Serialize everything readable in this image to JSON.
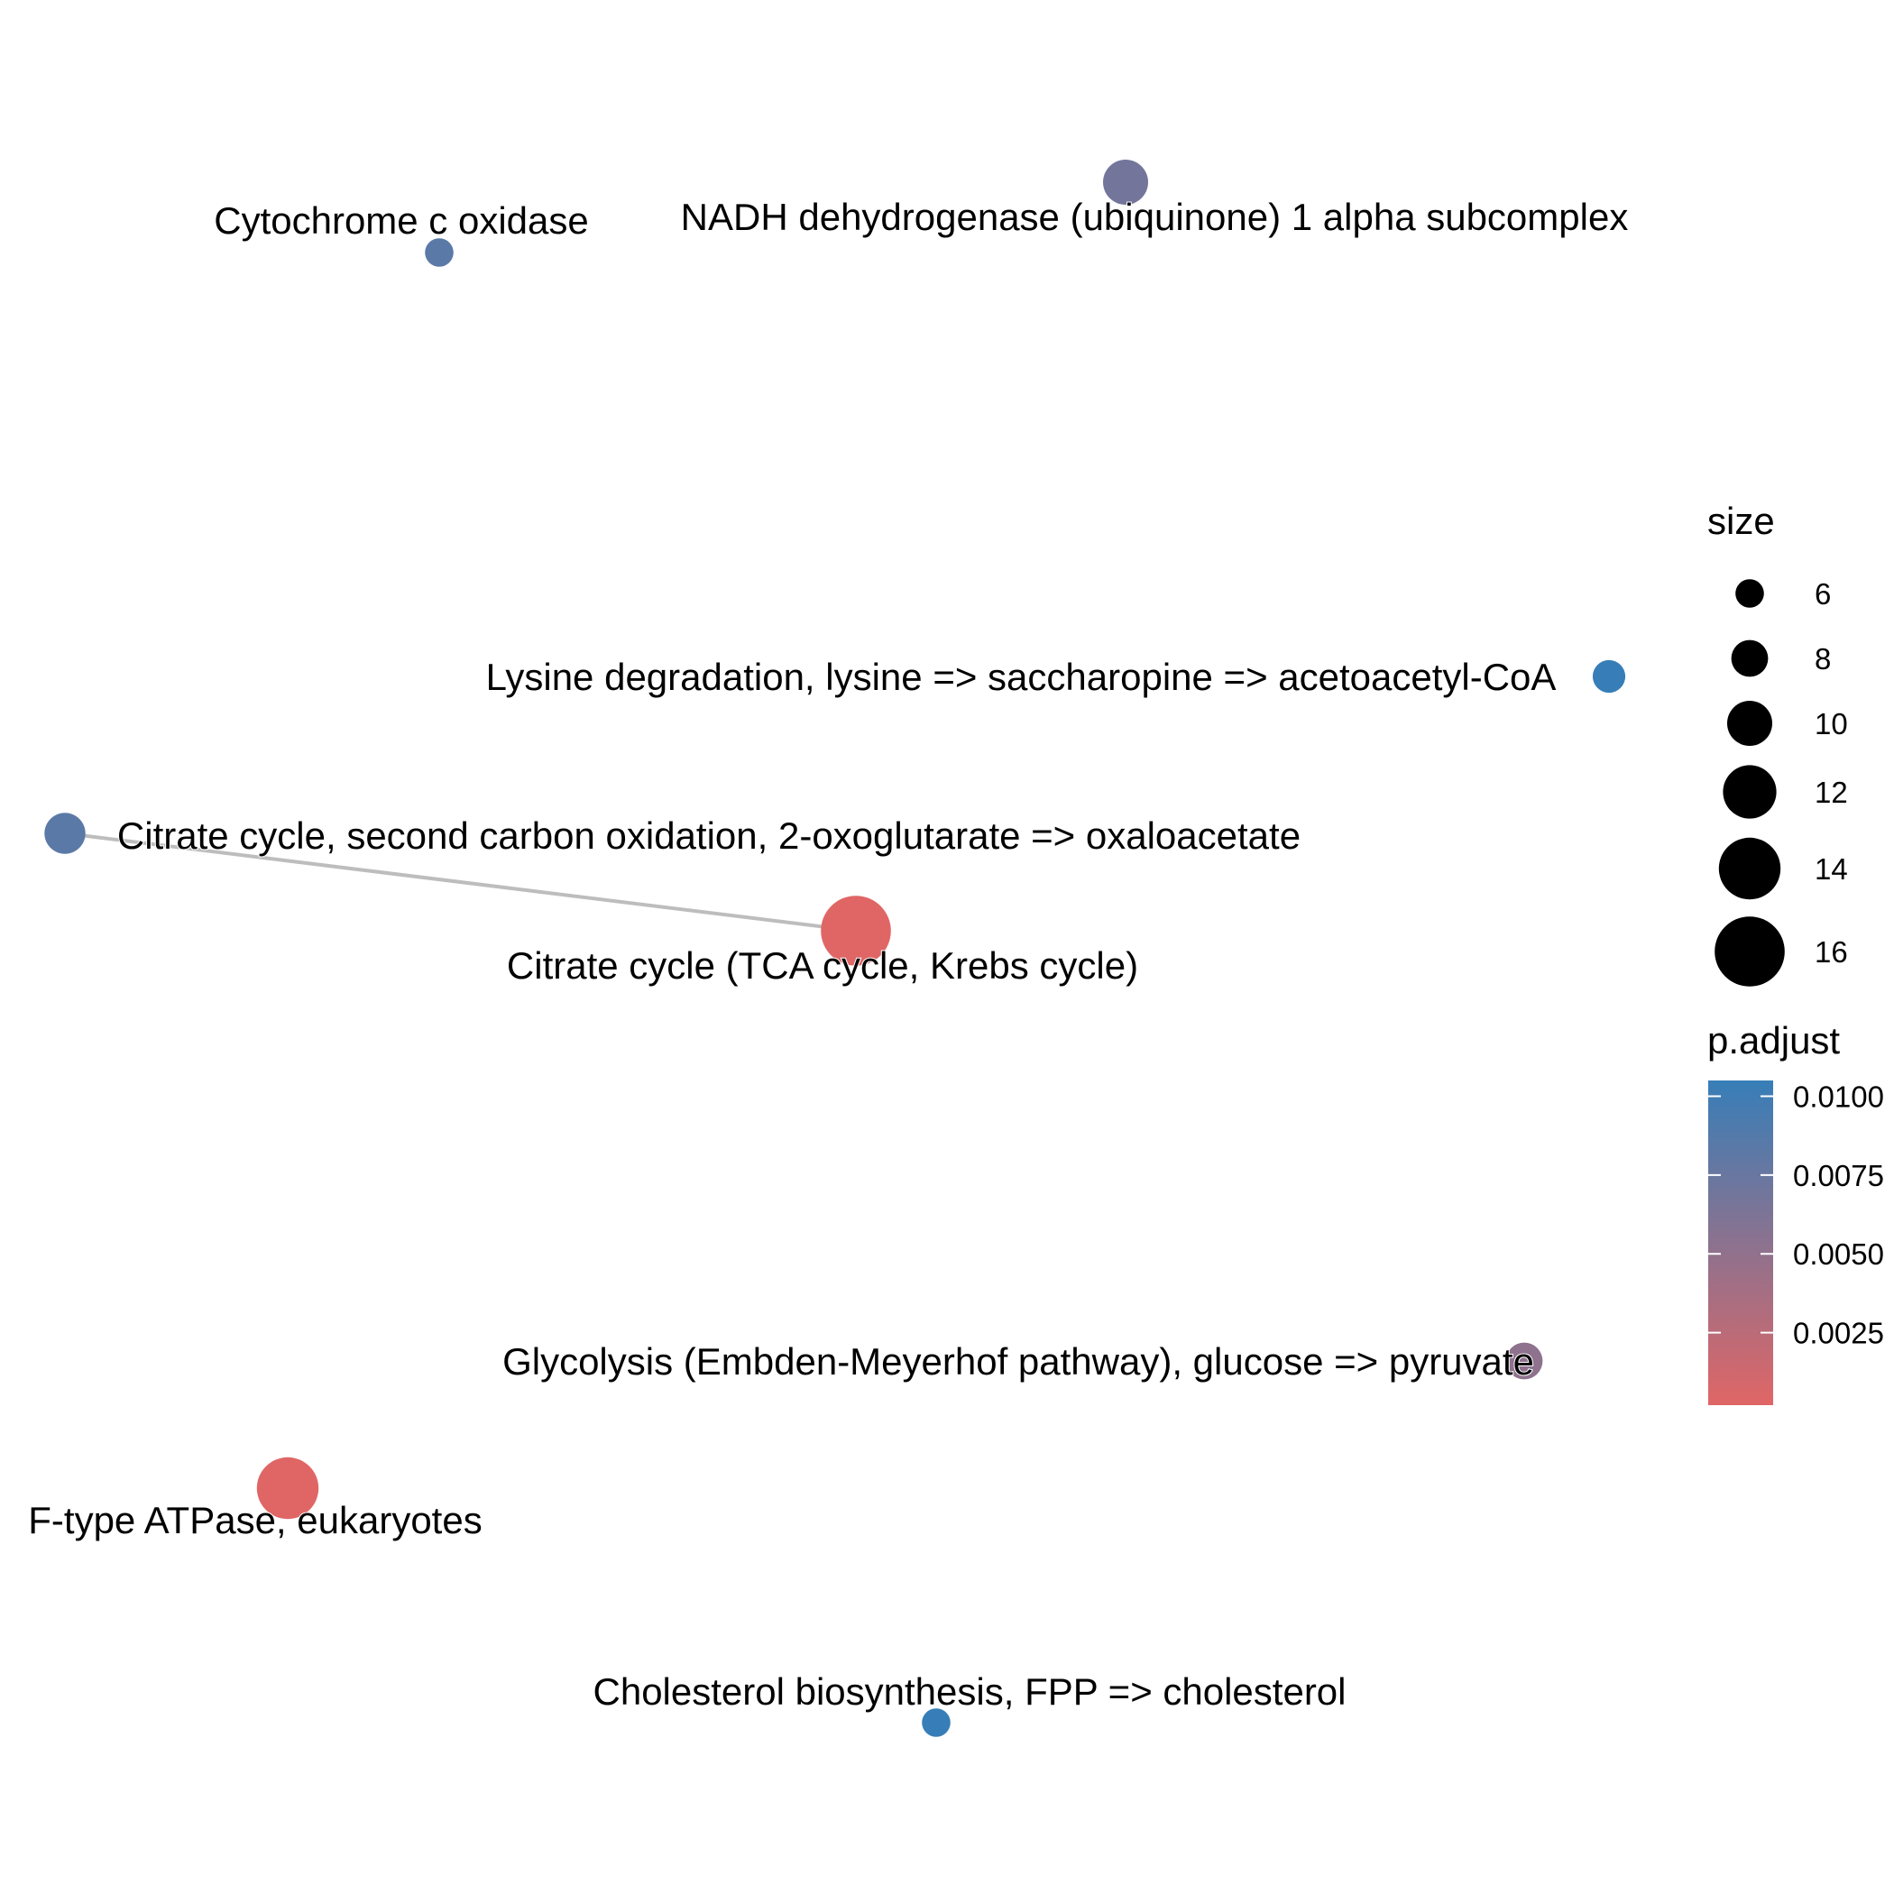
{
  "chart_data": {
    "type": "network",
    "nodes": [
      {
        "id": "cox",
        "label": "Cytochrome c oxidase",
        "size": 6,
        "p_adjust": 0.0083
      },
      {
        "id": "nadh",
        "label": "NADH dehydrogenase (ubiquinone) 1 alpha subcomplex",
        "size": 10,
        "p_adjust": 0.0068
      },
      {
        "id": "lys",
        "label": "Lysine degradation, lysine => saccharopine => acetoacetyl-CoA",
        "size": 7,
        "p_adjust": 0.0105
      },
      {
        "id": "cit2",
        "label": "Citrate cycle, second carbon oxidation, 2-oxoglutarate => oxaloacetate",
        "size": 9,
        "p_adjust": 0.0083
      },
      {
        "id": "tca",
        "label": "Citrate cycle (TCA cycle, Krebs cycle)",
        "size": 16,
        "p_adjust": 0.0002
      },
      {
        "id": "gly",
        "label": "Glycolysis (Embden-Meyerhof pathway), glucose => pyruvate",
        "size": 8,
        "p_adjust": 0.0052
      },
      {
        "id": "atp",
        "label": "F-type ATPase, eukaryotes",
        "size": 14,
        "p_adjust": 0.0002
      },
      {
        "id": "chol",
        "label": "Cholesterol biosynthesis, FPP => cholesterol",
        "size": 6,
        "p_adjust": 0.0105
      }
    ],
    "edges": [
      {
        "source": "cit2",
        "target": "tca"
      }
    ],
    "legend": {
      "size_title": "size",
      "size_breaks": [
        6,
        8,
        10,
        12,
        14,
        16
      ],
      "color_title": "p.adjust",
      "color_breaks": [
        {
          "value": 0.01,
          "label": "0.0100"
        },
        {
          "value": 0.0075,
          "label": "0.0075"
        },
        {
          "value": 0.005,
          "label": "0.0050"
        },
        {
          "value": 0.0025,
          "label": "0.0025"
        }
      ],
      "color_low": "#E06666",
      "color_high": "#377EB8",
      "color_range": [
        0.0002,
        0.0105
      ]
    }
  }
}
